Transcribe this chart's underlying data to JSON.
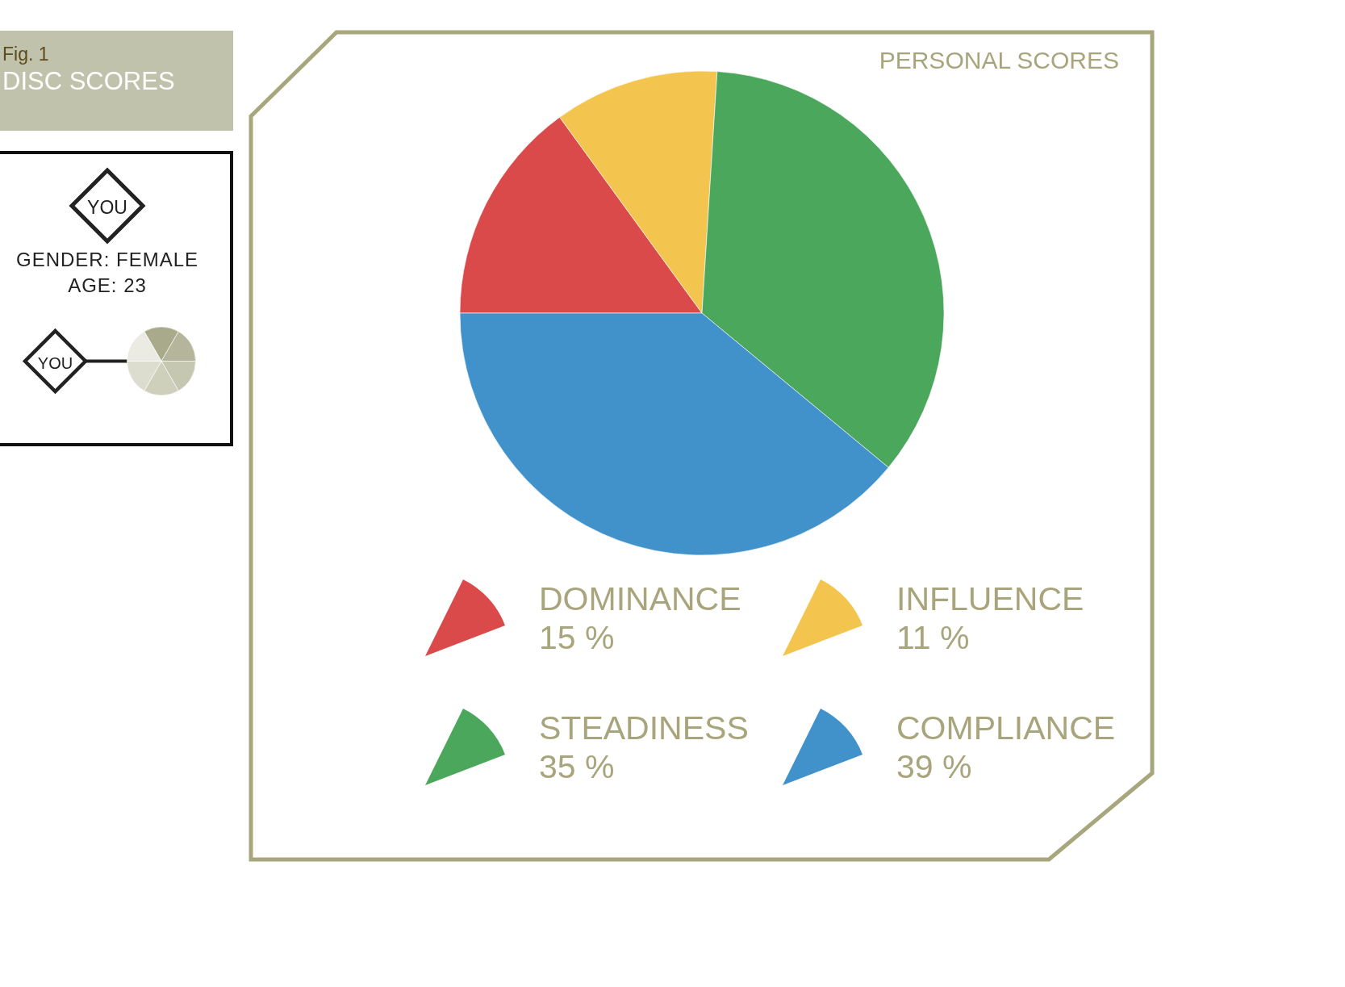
{
  "chart_data": {
    "type": "pie",
    "title": "DISC SCORES",
    "subtitle": "PERSONAL SCORES",
    "categories": [
      "DOMINANCE",
      "INFLUENCE",
      "STEADINESS",
      "COMPLIANCE"
    ],
    "values": [
      15,
      11,
      35,
      39
    ],
    "colors": [
      "#db4a4a",
      "#f4c54e",
      "#4ba75b",
      "#4191ca"
    ],
    "value_labels": [
      "15 %",
      "11 %",
      "35 %",
      "39 %"
    ],
    "legend": "bottom",
    "annotations": [
      "Fig. 1",
      "YOU",
      "GENDER: FEMALE",
      "AGE: 23",
      "YOU"
    ]
  }
}
